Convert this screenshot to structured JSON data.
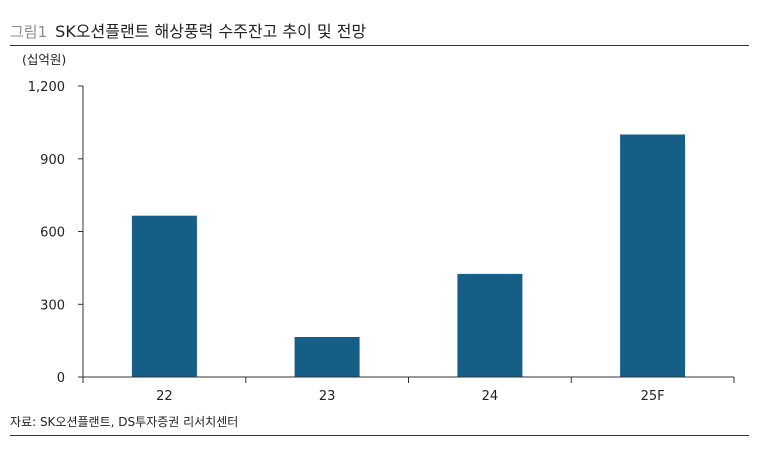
{
  "figure": {
    "label": "그림1",
    "title": "SK오션플랜트 해상풍력 수주잔고 추이 및 전망",
    "unit": "(십억원)",
    "source": "자료: SK오션플랜트, DS투자증권 리서치센터"
  },
  "colors": {
    "bar": "#155f87",
    "axis": "#333333",
    "text": "#222222",
    "label_gray": "#8c8c8c"
  },
  "chart_data": {
    "type": "bar",
    "title": "SK오션플랜트 해상풍력 수주잔고 추이 및 전망",
    "xlabel": "",
    "ylabel": "(십억원)",
    "categories": [
      "22",
      "23",
      "24",
      "25F"
    ],
    "values": [
      665,
      165,
      425,
      1000
    ],
    "ylim": [
      0,
      1200
    ],
    "yticks": [
      0,
      300,
      600,
      900,
      1200
    ],
    "ytick_labels": [
      "0",
      "300",
      "600",
      "900",
      "1,200"
    ],
    "grid": false,
    "legend": "none"
  }
}
